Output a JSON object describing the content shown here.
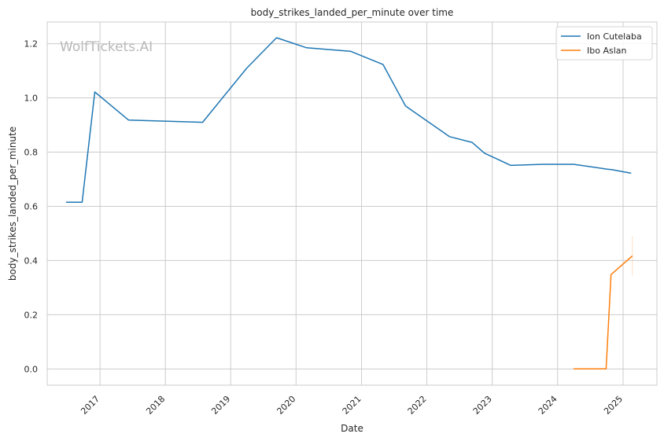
{
  "chart_data": {
    "type": "line",
    "title": "body_strikes_landed_per_minute over time",
    "xlabel": "Date",
    "ylabel": "body_strikes_landed_per_minute",
    "watermark": "WolfTickets.AI",
    "x_range": [
      "2016-03-12",
      "2025-07-09"
    ],
    "ylim": [
      -0.06,
      1.28
    ],
    "x_ticks": [
      {
        "date": "2017-01-01",
        "label": "2017"
      },
      {
        "date": "2018-01-01",
        "label": "2018"
      },
      {
        "date": "2019-01-01",
        "label": "2019"
      },
      {
        "date": "2020-01-01",
        "label": "2020"
      },
      {
        "date": "2021-01-01",
        "label": "2021"
      },
      {
        "date": "2022-01-01",
        "label": "2022"
      },
      {
        "date": "2023-01-01",
        "label": "2023"
      },
      {
        "date": "2024-01-01",
        "label": "2024"
      },
      {
        "date": "2025-01-01",
        "label": "2025"
      }
    ],
    "y_ticks": [
      0.0,
      0.2,
      0.4,
      0.6,
      0.8,
      1.0,
      1.2
    ],
    "y_tick_labels": [
      "0.0",
      "0.2",
      "0.4",
      "0.6",
      "0.8",
      "1.0",
      "1.2"
    ],
    "grid": true,
    "legend_position": "top-right",
    "series": [
      {
        "name": "Ion Cutelaba",
        "color": "#1f77b4",
        "points": [
          {
            "x": "2016-06-25",
            "y": 0.615
          },
          {
            "x": "2016-09-23",
            "y": 0.615
          },
          {
            "x": "2016-12-03",
            "y": 1.022
          },
          {
            "x": "2017-06-10",
            "y": 0.918
          },
          {
            "x": "2018-07-28",
            "y": 0.91
          },
          {
            "x": "2019-04-01",
            "y": 1.11
          },
          {
            "x": "2019-09-14",
            "y": 1.222
          },
          {
            "x": "2020-02-29",
            "y": 1.185
          },
          {
            "x": "2020-10-31",
            "y": 1.172
          },
          {
            "x": "2021-05-01",
            "y": 1.123
          },
          {
            "x": "2021-09-04",
            "y": 0.97
          },
          {
            "x": "2022-05-07",
            "y": 0.857
          },
          {
            "x": "2022-09-10",
            "y": 0.836
          },
          {
            "x": "2022-11-19",
            "y": 0.796
          },
          {
            "x": "2023-04-15",
            "y": 0.751
          },
          {
            "x": "2023-10-14",
            "y": 0.755
          },
          {
            "x": "2024-03-30",
            "y": 0.755
          },
          {
            "x": "2024-10-05",
            "y": 0.737
          },
          {
            "x": "2024-11-02",
            "y": 0.735
          },
          {
            "x": "2025-02-15",
            "y": 0.722
          }
        ]
      },
      {
        "name": "Ibo Aslan",
        "color": "#ff7f0e",
        "points": [
          {
            "x": "2024-03-30",
            "y": 0.0
          },
          {
            "x": "2024-09-28",
            "y": 0.0
          },
          {
            "x": "2024-10-26",
            "y": 0.348
          },
          {
            "x": "2025-02-22",
            "y": 0.417
          }
        ],
        "band": {
          "x": "2025-02-22",
          "y_low": 0.345,
          "y_high": 0.49
        }
      }
    ]
  }
}
